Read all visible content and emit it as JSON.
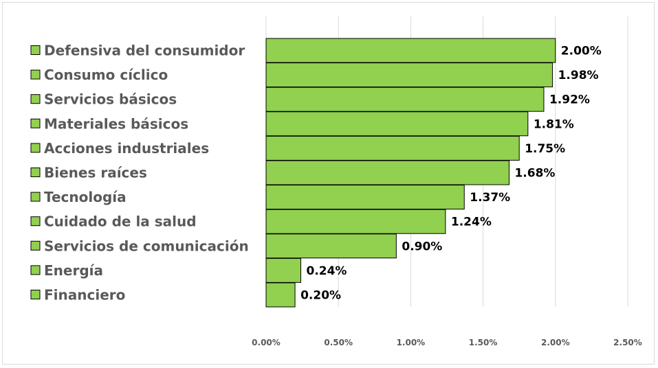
{
  "chart_data": {
    "type": "bar",
    "orientation": "horizontal",
    "categories": [
      "Defensiva del consumidor",
      "Consumo cíclico",
      "Servicios básicos",
      "Materiales básicos",
      "Acciones industriales",
      "Bienes raíces",
      "Tecnología",
      "Cuidado de la salud",
      "Servicios de comunicación",
      "Energía",
      "Financiero"
    ],
    "values": [
      2.0,
      1.98,
      1.92,
      1.81,
      1.75,
      1.68,
      1.37,
      1.24,
      0.9,
      0.24,
      0.2
    ],
    "value_labels": [
      "2.00%",
      "1.98%",
      "1.92%",
      "1.81%",
      "1.75%",
      "1.68%",
      "1.37%",
      "1.24%",
      "0.90%",
      "0.24%",
      "0.20%"
    ],
    "x_ticks": [
      0,
      0.5,
      1.0,
      1.5,
      2.0,
      2.5
    ],
    "x_tick_labels": [
      "0.00%",
      "0.50%",
      "1.00%",
      "1.50%",
      "2.00%",
      "2.50%"
    ],
    "xlim": [
      0,
      2.5
    ],
    "title": "",
    "xlabel": "",
    "ylabel": "",
    "grid": "vertical",
    "legend_position": "left",
    "bar_color": "#92d050",
    "bar_edge_color": "#000000",
    "grid_color": "#d9d9d9"
  }
}
